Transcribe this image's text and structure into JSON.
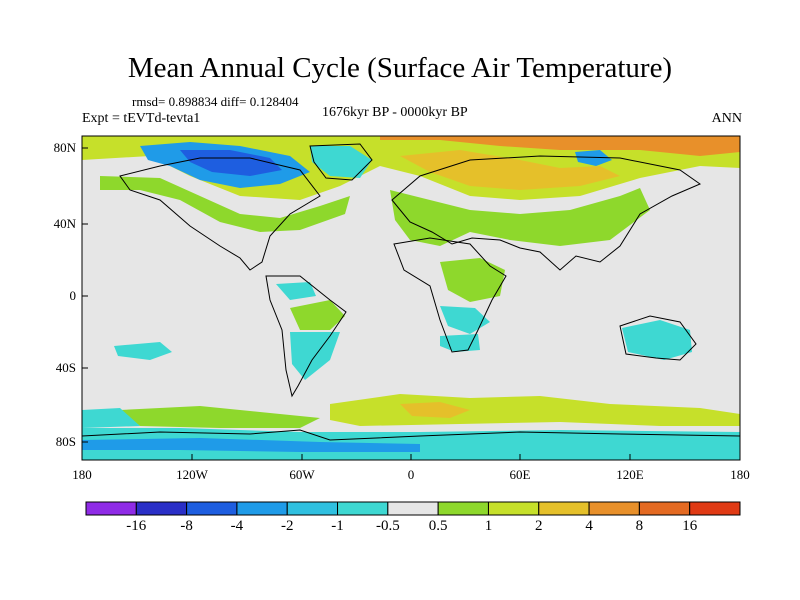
{
  "title": "Mean Annual Cycle (Surface Air Temperature)",
  "stats": "rmsd= 0.898834 diff= 0.128404",
  "experiment": "Expt = tEVTd-tevta1",
  "period": "1676kyr BP - 0000kyr BP",
  "season": "ANN",
  "axes": {
    "y_ticks": [
      "80N",
      "40N",
      "0",
      "40S",
      "80S"
    ],
    "x_ticks": [
      "180",
      "120W",
      "60W",
      "0",
      "60E",
      "120E",
      "180"
    ]
  },
  "colorbar": {
    "labels": [
      "-16",
      "-8",
      "-4",
      "-2",
      "-1",
      "-0.5",
      "0.5",
      "1",
      "2",
      "4",
      "8",
      "16"
    ],
    "colors": [
      "#8f2be6",
      "#2a2fc7",
      "#1e5ee0",
      "#1f9be8",
      "#2fc0e0",
      "#3ed8d2",
      "#e6e6e6",
      "#8ed82c",
      "#c6e02a",
      "#e5c02a",
      "#e8902a",
      "#e46a22",
      "#e03a14"
    ]
  }
}
